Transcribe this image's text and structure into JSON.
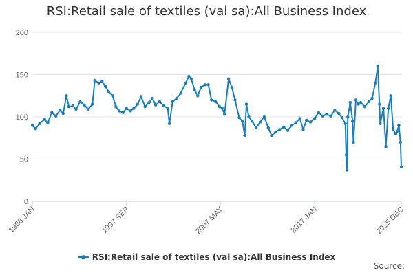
{
  "title": "RSI:Retail sale of textiles (val sa):All Business Index",
  "source_label": "Source:",
  "colors": {
    "series": "#1a7fb8",
    "grid": "#e6e6e6",
    "axis": "#ccd6eb",
    "text": "#666666"
  },
  "chart_data": {
    "type": "line",
    "title": "RSI:Retail sale of textiles (val sa):All Business Index",
    "xlabel": "",
    "ylabel": "",
    "ylim": [
      0,
      200
    ],
    "yticks": [
      0,
      50,
      100,
      150,
      200
    ],
    "xlim": [
      "1988 JAN",
      "2025 DEC"
    ],
    "xticks": [
      "1988 JAN",
      "1997 SEP",
      "2007 MAY",
      "2017 JAN",
      "2025 DEC"
    ],
    "markers": true,
    "grid": true,
    "legend_position": "bottom",
    "series": [
      {
        "name": "RSI:Retail sale of textiles (val sa):All Business Index",
        "points": [
          [
            "1988 JAN",
            90
          ],
          [
            "1988 MAY",
            86
          ],
          [
            "1988 OCT",
            92
          ],
          [
            "1989 APR",
            97
          ],
          [
            "1989 AUG",
            93
          ],
          [
            "1990 JAN",
            105
          ],
          [
            "1990 JUN",
            101
          ],
          [
            "1990 NOV",
            108
          ],
          [
            "1991 MAR",
            104
          ],
          [
            "1991 JUL",
            125
          ],
          [
            "1991 OCT",
            112
          ],
          [
            "1992 MAR",
            113
          ],
          [
            "1992 JUL",
            109
          ],
          [
            "1992 DEC",
            118
          ],
          [
            "1993 MAY",
            114
          ],
          [
            "1993 OCT",
            109
          ],
          [
            "1994 MAR",
            115
          ],
          [
            "1994 JUN",
            143
          ],
          [
            "1994 NOV",
            140
          ],
          [
            "1995 MAR",
            142
          ],
          [
            "1995 JUL",
            136
          ],
          [
            "1995 NOV",
            130
          ],
          [
            "1996 APR",
            125
          ],
          [
            "1996 AUG",
            112
          ],
          [
            "1996 DEC",
            107
          ],
          [
            "1997 MAY",
            105
          ],
          [
            "1997 SEP",
            110
          ],
          [
            "1998 FEB",
            107
          ],
          [
            "1998 JUN",
            110
          ],
          [
            "1998 NOV",
            115
          ],
          [
            "1999 MAR",
            124
          ],
          [
            "1999 AUG",
            112
          ],
          [
            "2000 JAN",
            117
          ],
          [
            "2000 MAY",
            122
          ],
          [
            "2000 SEP",
            114
          ],
          [
            "2001 FEB",
            118
          ],
          [
            "2001 JUL",
            113
          ],
          [
            "2001 DEC",
            110
          ],
          [
            "2002 FEB",
            92
          ],
          [
            "2002 JUN",
            118
          ],
          [
            "2002 NOV",
            122
          ],
          [
            "2003 APR",
            128
          ],
          [
            "2003 OCT",
            140
          ],
          [
            "2004 FEB",
            148
          ],
          [
            "2004 MAY",
            145
          ],
          [
            "2004 SEP",
            132
          ],
          [
            "2005 JAN",
            125
          ],
          [
            "2005 MAY",
            135
          ],
          [
            "2005 OCT",
            138
          ],
          [
            "2006 FEB",
            138
          ],
          [
            "2006 JUN",
            120
          ],
          [
            "2006 NOV",
            118
          ],
          [
            "2007 APR",
            112
          ],
          [
            "2007 JUL",
            110
          ],
          [
            "2007 OCT",
            103
          ],
          [
            "2008 MAR",
            145
          ],
          [
            "2008 JUL",
            135
          ],
          [
            "2008 NOV",
            120
          ],
          [
            "2009 APR",
            99
          ],
          [
            "2009 AUG",
            95
          ],
          [
            "2009 NOV",
            78
          ],
          [
            "2010 JAN",
            115
          ],
          [
            "2010 APR",
            100
          ],
          [
            "2010 AUG",
            95
          ],
          [
            "2011 JAN",
            87
          ],
          [
            "2011 JUN",
            94
          ],
          [
            "2011 NOV",
            100
          ],
          [
            "2012 APR",
            87
          ],
          [
            "2012 AUG",
            78
          ],
          [
            "2013 JAN",
            82
          ],
          [
            "2013 JUN",
            85
          ],
          [
            "2013 NOV",
            88
          ],
          [
            "2014 APR",
            84
          ],
          [
            "2014 SEP",
            90
          ],
          [
            "2015 FEB",
            93
          ],
          [
            "2015 JUL",
            98
          ],
          [
            "2015 NOV",
            85
          ],
          [
            "2016 MAR",
            96
          ],
          [
            "2016 AUG",
            94
          ],
          [
            "2017 JAN",
            98
          ],
          [
            "2017 JUN",
            105
          ],
          [
            "2017 NOV",
            101
          ],
          [
            "2018 APR",
            103
          ],
          [
            "2018 SEP",
            101
          ],
          [
            "2019 FEB",
            108
          ],
          [
            "2019 JUL",
            104
          ],
          [
            "2019 NOV",
            99
          ],
          [
            "2020 MAR",
            92
          ],
          [
            "2020 APR",
            55
          ],
          [
            "2020 MAY",
            37
          ],
          [
            "2020 JUN",
            100
          ],
          [
            "2020 SEP",
            117
          ],
          [
            "2020 DEC",
            95
          ],
          [
            "2021 JAN",
            70
          ],
          [
            "2021 APR",
            120
          ],
          [
            "2021 JUL",
            115
          ],
          [
            "2021 OCT",
            117
          ],
          [
            "2022 MAR",
            112
          ],
          [
            "2022 AUG",
            118
          ],
          [
            "2022 DEC",
            122
          ],
          [
            "2023 APR",
            140
          ],
          [
            "2023 JUL",
            160
          ],
          [
            "2023 SEP",
            115
          ],
          [
            "2023 OCT",
            92
          ],
          [
            "2024 FEB",
            110
          ],
          [
            "2024 MAY",
            65
          ],
          [
            "2024 AUG",
            110
          ],
          [
            "2024 NOV",
            125
          ],
          [
            "2025 FEB",
            85
          ],
          [
            "2025 MAY",
            80
          ],
          [
            "2025 JUL",
            83
          ],
          [
            "2025 SEP",
            90
          ],
          [
            "2025 NOV",
            70
          ],
          [
            "2025 DEC",
            41
          ]
        ]
      }
    ]
  }
}
